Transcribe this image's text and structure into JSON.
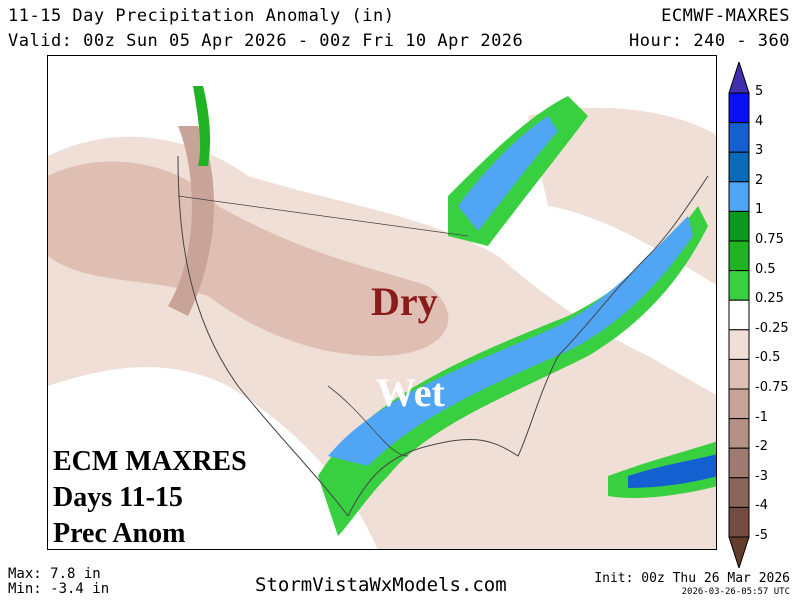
{
  "header": {
    "title": "11-15 Day Precipitation Anomaly (in)",
    "model": "ECMWF-MAXRES",
    "valid": "Valid: 00z Sun 05 Apr 2026 - 00z Fri 10 Apr 2026",
    "hour": "Hour: 240 - 360"
  },
  "map": {
    "dry_label": "Dry",
    "wet_label": "Wet",
    "inset_lines": [
      "ECM MAXRES",
      "Days 11-15",
      "Prec Anom"
    ],
    "dry_color": "#8b1a1a"
  },
  "colorbar": {
    "labels": [
      "5",
      "4",
      "3",
      "2",
      "1",
      "0.75",
      "0.5",
      "0.25",
      "-0.25",
      "-0.5",
      "-0.75",
      "-1",
      "-2",
      "-3",
      "-4",
      "-5"
    ],
    "colors": [
      "#0a10f5",
      "#1560d0",
      "#0a6ab8",
      "#50a5f5",
      "#0a9a1f",
      "#20b425",
      "#38d040",
      "#ffffff",
      "#f0dfd6",
      "#dfbfb3",
      "#c8a398",
      "#b49085",
      "#9e7a70",
      "#8a655a",
      "#754c42"
    ],
    "top_arrow_color": "#4030b0",
    "bottom_arrow_color": "#643c2e"
  },
  "footer": {
    "max": "Max: 7.8 in",
    "min": "Min: -3.4 in",
    "site": "StormVistaWxModels.com",
    "init": "Init: 00z Thu 26 Mar 2026",
    "timestamp": "2026-03-26-05:57 UTC"
  }
}
